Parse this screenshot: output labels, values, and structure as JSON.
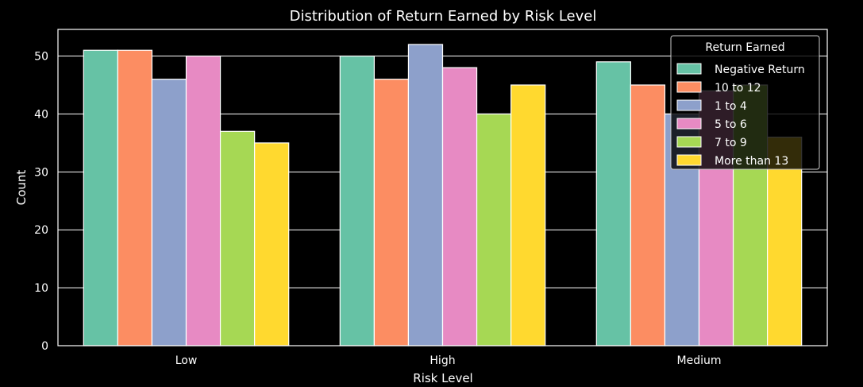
{
  "chart_data": {
    "type": "bar",
    "title": "Distribution of Return Earned by Risk Level",
    "xlabel": "Risk Level",
    "ylabel": "Count",
    "ylim": [
      0,
      54.6
    ],
    "yticks": [
      0,
      10,
      20,
      30,
      40,
      50
    ],
    "grid": true,
    "categories": [
      "Low",
      "High",
      "Medium"
    ],
    "legend": {
      "title": "Return Earned",
      "placement": "top-right"
    },
    "series": [
      {
        "name": "Negative Return",
        "color": "#66c2a5",
        "values": [
          51,
          50,
          49
        ]
      },
      {
        "name": "10 to 12",
        "color": "#fc8d62",
        "values": [
          51,
          46,
          45
        ]
      },
      {
        "name": "1 to 4",
        "color": "#8da0cb",
        "values": [
          46,
          52,
          40
        ]
      },
      {
        "name": "5 to 6",
        "color": "#e78ac3",
        "values": [
          50,
          48,
          44
        ]
      },
      {
        "name": "7 to 9",
        "color": "#a6d854",
        "values": [
          37,
          40,
          45
        ]
      },
      {
        "name": "More than 13",
        "color": "#ffd92f",
        "values": [
          35,
          45,
          36
        ]
      }
    ],
    "colors": {
      "background": "#000000",
      "axes": "#ffffff",
      "text": "#ffffff"
    }
  }
}
